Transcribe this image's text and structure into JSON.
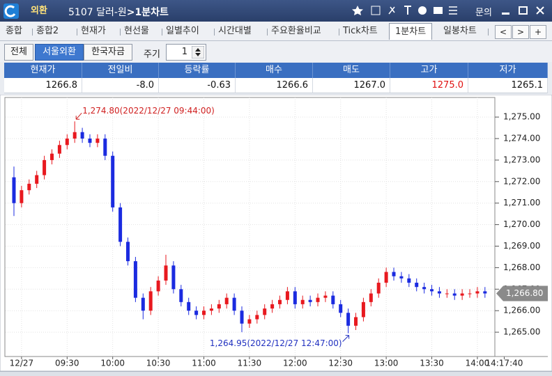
{
  "title_bar": {
    "market": "외환",
    "code_name": "5107 달러-원",
    "screen": ">1분차트",
    "inquiry": "문의"
  },
  "tabs": {
    "items": [
      "종합",
      "종합2",
      "현재가",
      "현선물",
      "일별추이",
      "시간대별",
      "주요환율비교",
      "Tick차트",
      "1분차트",
      "일봉차트"
    ],
    "active": 8,
    "nav": [
      "<",
      ">",
      "+"
    ]
  },
  "toolbar": {
    "buttons": [
      "전체",
      "서울외환",
      "한국자금"
    ],
    "selected": 1,
    "period_label": "주기",
    "period_value": "1"
  },
  "quote_table": {
    "headers": [
      "현재가",
      "전일비",
      "등락률",
      "매수",
      "매도",
      "고가",
      "저가"
    ],
    "values": [
      "1266.8",
      "-8.0",
      "-0.63",
      "1266.6",
      "1267.0",
      "1275.0",
      "1265.1"
    ]
  },
  "chart_data": {
    "type": "candlestick",
    "x": [
      535,
      540,
      545,
      550,
      555,
      560,
      565,
      570,
      575,
      580,
      585,
      590,
      595,
      600,
      605,
      610,
      615,
      620,
      625,
      630,
      635,
      640,
      645,
      650,
      655,
      660,
      665,
      670,
      675,
      680,
      685,
      690,
      695,
      700,
      705,
      710,
      715,
      720,
      725,
      730,
      735,
      740,
      745,
      750,
      755,
      760,
      765,
      770,
      775,
      780,
      785,
      790,
      795,
      800,
      805,
      810,
      815,
      820,
      825,
      830,
      835,
      840,
      845
    ],
    "open": [
      1272.2,
      1271.0,
      1271.6,
      1271.9,
      1272.3,
      1273.0,
      1273.3,
      1273.7,
      1274.0,
      1274.3,
      1274.0,
      1273.8,
      1274.0,
      1273.2,
      1270.8,
      1269.2,
      1268.3,
      1266.6,
      1266.0,
      1266.9,
      1267.4,
      1268.1,
      1267.0,
      1266.4,
      1266.0,
      1265.8,
      1266.0,
      1266.1,
      1266.3,
      1266.6,
      1266.0,
      1265.4,
      1265.6,
      1265.8,
      1266.1,
      1266.3,
      1266.5,
      1266.9,
      1266.3,
      1266.5,
      1266.4,
      1266.6,
      1266.7,
      1266.3,
      1265.9,
      1265.3,
      1265.7,
      1266.4,
      1266.8,
      1267.3,
      1267.8,
      1267.6,
      1267.5,
      1267.3,
      1267.1,
      1267.0,
      1266.9,
      1266.8,
      1266.8,
      1266.7,
      1266.8,
      1266.8,
      1266.9
    ],
    "high": [
      1272.7,
      1271.8,
      1272.1,
      1272.5,
      1273.2,
      1273.5,
      1273.9,
      1274.2,
      1274.8,
      1274.5,
      1274.2,
      1274.2,
      1274.2,
      1273.4,
      1271.0,
      1269.4,
      1268.5,
      1266.8,
      1267.1,
      1267.6,
      1268.6,
      1268.3,
      1267.2,
      1266.6,
      1266.2,
      1266.2,
      1266.3,
      1266.5,
      1266.8,
      1266.8,
      1266.2,
      1265.8,
      1266.0,
      1266.3,
      1266.5,
      1266.7,
      1267.1,
      1267.1,
      1266.7,
      1266.7,
      1266.8,
      1266.9,
      1266.9,
      1266.5,
      1266.1,
      1265.9,
      1266.6,
      1267.0,
      1267.5,
      1268.0,
      1268.0,
      1267.8,
      1267.7,
      1267.5,
      1267.3,
      1267.2,
      1267.1,
      1267.0,
      1267.0,
      1267.0,
      1267.0,
      1267.1,
      1267.1
    ],
    "low": [
      1270.4,
      1270.8,
      1271.4,
      1271.7,
      1272.1,
      1272.8,
      1273.1,
      1273.5,
      1273.8,
      1273.8,
      1273.6,
      1273.6,
      1273.0,
      1270.6,
      1269.0,
      1268.1,
      1266.4,
      1265.6,
      1265.8,
      1266.7,
      1267.2,
      1266.8,
      1266.2,
      1265.8,
      1265.6,
      1265.6,
      1265.8,
      1265.9,
      1266.1,
      1265.8,
      1265.0,
      1265.2,
      1265.4,
      1265.6,
      1265.9,
      1266.1,
      1266.3,
      1266.1,
      1266.1,
      1266.2,
      1266.2,
      1266.4,
      1266.1,
      1265.7,
      1264.95,
      1265.1,
      1265.5,
      1266.2,
      1266.6,
      1267.1,
      1267.4,
      1267.3,
      1267.1,
      1266.9,
      1266.8,
      1266.7,
      1266.6,
      1266.6,
      1266.5,
      1266.5,
      1266.6,
      1266.6,
      1266.6
    ],
    "close": [
      1271.0,
      1271.6,
      1271.9,
      1272.3,
      1273.0,
      1273.3,
      1273.7,
      1274.0,
      1274.3,
      1274.0,
      1273.8,
      1274.0,
      1273.2,
      1270.8,
      1269.2,
      1268.3,
      1266.6,
      1266.0,
      1266.9,
      1267.4,
      1268.1,
      1267.0,
      1266.4,
      1266.0,
      1265.8,
      1266.0,
      1266.1,
      1266.3,
      1266.6,
      1266.0,
      1265.4,
      1265.6,
      1265.8,
      1266.1,
      1266.3,
      1266.5,
      1266.9,
      1266.3,
      1266.5,
      1266.4,
      1266.6,
      1266.7,
      1266.3,
      1265.9,
      1265.3,
      1265.7,
      1266.4,
      1266.8,
      1267.3,
      1267.8,
      1267.6,
      1267.5,
      1267.3,
      1267.1,
      1267.0,
      1266.9,
      1266.8,
      1266.8,
      1266.7,
      1266.8,
      1266.8,
      1266.9,
      1266.8
    ],
    "up_color": "#e8191f",
    "down_color": "#1b2be0",
    "xlim": [
      529.5,
      851.5
    ],
    "xticks": [
      {
        "value": 540,
        "label": "12/27"
      },
      {
        "value": 570,
        "label": "09:30"
      },
      {
        "value": 600,
        "label": "10:00"
      },
      {
        "value": 630,
        "label": "10:30"
      },
      {
        "value": 660,
        "label": "11:00"
      },
      {
        "value": 690,
        "label": "11:30"
      },
      {
        "value": 720,
        "label": "12:00"
      },
      {
        "value": 750,
        "label": "12:30"
      },
      {
        "value": 780,
        "label": "13:00"
      },
      {
        "value": 810,
        "label": "13:30"
      },
      {
        "value": 840,
        "label": "14:00"
      },
      {
        "value": 857.67,
        "label": "14:17:40"
      }
    ],
    "ylim": [
      1263.87,
      1275.91
    ],
    "yticks": [
      {
        "value": 1265,
        "label": "1,265.00"
      },
      {
        "value": 1266,
        "label": "1,266.00"
      },
      {
        "value": 1267,
        "label": "1,267.00"
      },
      {
        "value": 1268,
        "label": "1,268.00"
      },
      {
        "value": 1269,
        "label": "1,269.00"
      },
      {
        "value": 1270,
        "label": "1,270.00"
      },
      {
        "value": 1271,
        "label": "1,271.00"
      },
      {
        "value": 1272,
        "label": "1,272.00"
      },
      {
        "value": 1273,
        "label": "1,273.00"
      },
      {
        "value": 1274,
        "label": "1,274.00"
      },
      {
        "value": 1275,
        "label": "1,275.00"
      }
    ],
    "grid": true,
    "annotations": {
      "high": "1,274.80(2022/12/27 09:44:00)",
      "low": "1,264.95(2022/12/27 12:47:00)"
    },
    "last_price": {
      "value": 1266.8,
      "label": "1,266.80"
    }
  }
}
